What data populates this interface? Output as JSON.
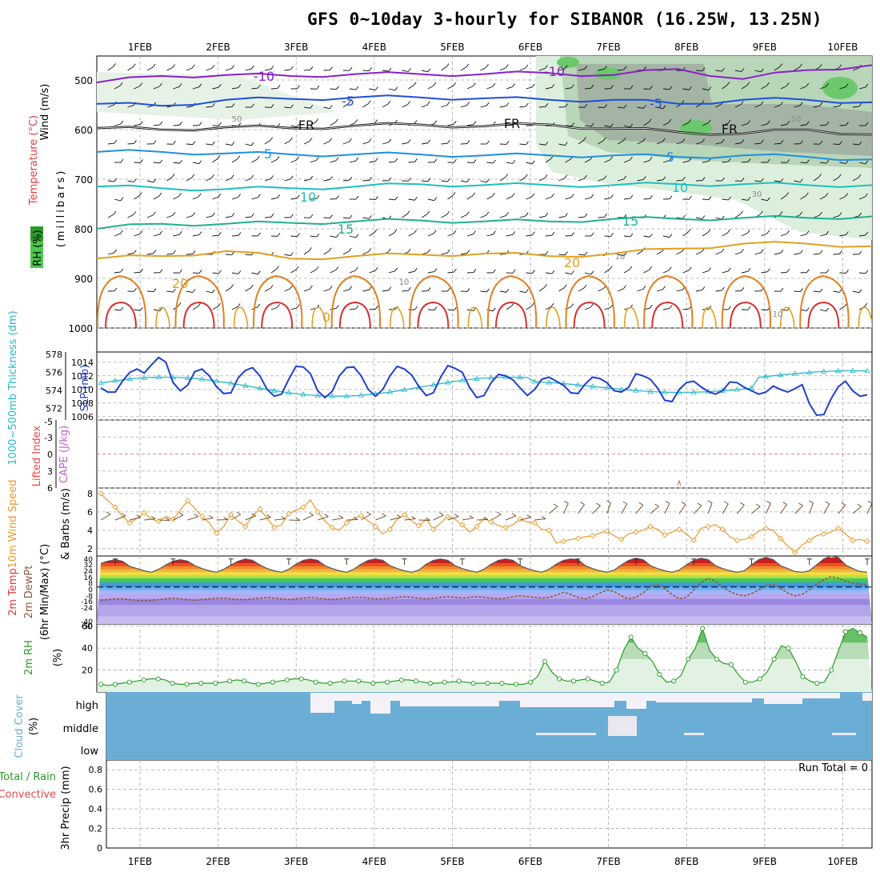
{
  "title": "GFS 0~10day 3-hourly for SIBANOR (16.25W, 13.25N)",
  "colors": {
    "grid": "#aaaaaa",
    "slp": "#1f3fd0",
    "thickness": "#2ab8c8",
    "wind10m": "#e89a2e",
    "rh2m": "#2a9a2a",
    "cloud": "#6aaed6",
    "lifted": "#e24c4c",
    "cape": "#c060d0"
  },
  "chart_data": [
    {
      "panel": "upper-air",
      "type": "line",
      "x_ticks": [
        "1FEB",
        "2FEB",
        "3FEB",
        "4FEB",
        "5FEB",
        "6FEB",
        "7FEB",
        "8FEB",
        "9FEB",
        "10FEB"
      ],
      "ylabel_left": "Wind (m/s)",
      "ylabel_temp": "Temperature (°C)",
      "ylabel_rh": "RH (%)",
      "ylabel_units": "(millibars)",
      "y_ticks": [
        "500",
        "600",
        "700",
        "800",
        "900",
        "1000"
      ],
      "contour_labels": [
        "-10",
        "-10",
        "-5",
        "-5",
        "FR",
        "FR",
        "FR",
        "5",
        "5",
        "10",
        "10",
        "15",
        "15",
        "20",
        "20",
        "50",
        "50",
        "30",
        "10",
        "10",
        "10",
        "0"
      ],
      "isotherms": [
        {
          "label": "-10",
          "color": "#8a1fc8",
          "p": [
            505,
            492,
            490,
            492,
            488,
            488,
            488,
            486,
            490,
            478,
            498,
            480,
            470
          ]
        },
        {
          "label": "-5",
          "color": "#1f4fd8",
          "p": [
            548,
            552,
            540,
            538,
            535,
            535,
            537,
            540,
            540,
            548,
            540,
            540,
            545
          ]
        },
        {
          "label": "FR",
          "color": "#111111",
          "p": [
            597,
            600,
            595,
            597,
            592,
            590,
            593,
            590,
            598,
            605,
            608,
            600,
            610
          ]
        },
        {
          "label": "5",
          "color": "#1f8fe0",
          "p": [
            645,
            645,
            648,
            650,
            650,
            650,
            652,
            652,
            652,
            655,
            652,
            655,
            660
          ]
        },
        {
          "label": "10",
          "color": "#1fbfc0",
          "p": [
            715,
            718,
            720,
            718,
            715,
            710,
            712,
            712,
            712,
            710,
            710,
            712,
            712
          ]
        },
        {
          "label": "15",
          "color": "#1fb090",
          "p": [
            800,
            790,
            790,
            788,
            785,
            783,
            785,
            785,
            780,
            780,
            778,
            778,
            775
          ]
        },
        {
          "label": "20",
          "color": "#e0a020",
          "p": [
            860,
            855,
            845,
            860,
            855,
            852,
            850,
            855,
            850,
            840,
            830,
            830,
            835
          ]
        }
      ]
    },
    {
      "panel": "slp-thickness",
      "type": "line",
      "ylabel_left": "1000~500mb Thickness (dm)",
      "ylabel_right": "SLP (mb)",
      "left_ticks": [
        "578",
        "576",
        "574",
        "572"
      ],
      "right_ticks": [
        "1014",
        "1012",
        "1010",
        "1008",
        "1006"
      ],
      "slp_ylim": [
        1005.5,
        1015.5
      ],
      "thick_ylim": [
        570,
        578
      ],
      "slp": [
        1010.2,
        1009.6,
        1009.6,
        1011.2,
        1012.5,
        1013.0,
        1012.4,
        1013.6,
        1014.7,
        1014.0,
        1011.0,
        1009.8,
        1010.6,
        1012.6,
        1013.0,
        1012.0,
        1010.4,
        1009.4,
        1009.5,
        1011.7,
        1012.8,
        1013.2,
        1012.0,
        1010.0,
        1009.0,
        1009.3,
        1011.5,
        1013.4,
        1013.3,
        1012.3,
        1009.8,
        1008.8,
        1009.7,
        1012.0,
        1013.2,
        1013.3,
        1012.0,
        1010.0,
        1009.0,
        1010.0,
        1012.0,
        1013.4,
        1013.0,
        1012.1,
        1010.4,
        1009.1,
        1009.5,
        1011.8,
        1013.5,
        1013.1,
        1012.5,
        1010.3,
        1008.8,
        1009.1,
        1011.0,
        1012.2,
        1012.0,
        1011.4,
        1010.2,
        1009.1,
        1010.0,
        1011.5,
        1011.8,
        1011.2,
        1010.6,
        1009.5,
        1009.4,
        1010.8,
        1011.8,
        1011.6,
        1011.0,
        1009.8,
        1009.6,
        1010.3,
        1012.3,
        1012.0,
        1011.5,
        1010.2,
        1008.4,
        1008.2,
        1010.0,
        1011.0,
        1011.2,
        1010.4,
        1009.7,
        1009.3,
        1009.8,
        1011.1,
        1011.0,
        1010.3,
        1009.8,
        1009.3,
        1009.6,
        1010.5,
        1010.0,
        1009.6,
        1010.1,
        1010.7,
        1007.9,
        1006.2,
        1006.3,
        1008.6,
        1010.4,
        1011.2,
        1009.8,
        1009.0,
        1009.2
      ]
    },
    {
      "panel": "lifted-cape",
      "type": "line",
      "ylabel_left": "Lifted Index",
      "ylabel_right": "CAPE (J/kg)",
      "y_ticks": [
        "-5",
        "-3",
        "0",
        "3",
        "6"
      ],
      "ylim": [
        -6,
        6
      ],
      "zero_line": 0
    },
    {
      "panel": "wind10m",
      "type": "line",
      "ylabel_left": "10m Wind Speed",
      "ylabel_right": "& Barbs (m/s)",
      "y_ticks": [
        "8",
        "6",
        "4",
        "2"
      ],
      "ylim": [
        1.2,
        8.6
      ],
      "values": [
        8.0,
        7.2,
        6.5,
        5.5,
        4.8,
        5.3,
        5.9,
        5.2,
        5.0,
        5.5,
        5.2,
        6.2,
        7.2,
        6.4,
        5.5,
        4.8,
        3.7,
        4.4,
        5.7,
        5.0,
        4.4,
        5.6,
        6.3,
        5.3,
        4.3,
        4.6,
        5.8,
        6.2,
        6.5,
        7.3,
        6.0,
        5.0,
        4.3,
        4.0,
        4.8,
        5.3,
        5.6,
        5.0,
        4.4,
        3.6,
        4.1,
        5.2,
        5.7,
        5.0,
        4.5,
        5.2,
        4.1,
        4.8,
        5.5,
        5.2,
        4.6,
        3.8,
        4.4,
        5.3,
        4.9,
        4.5,
        4.3,
        4.6,
        5.2,
        4.9,
        4.8,
        4.1,
        4.0,
        2.6,
        2.8,
        3.0,
        3.1,
        3.3,
        3.4,
        3.7,
        3.9,
        3.4,
        3.0,
        3.6,
        3.8,
        4.0,
        4.4,
        4.1,
        3.5,
        3.8,
        4.1,
        3.6,
        2.9,
        4.2,
        4.4,
        4.6,
        4.1,
        3.3,
        2.9,
        3.0,
        3.3,
        3.9,
        4.2,
        4.0,
        3.1,
        2.3,
        1.6,
        2.4,
        2.9,
        3.4,
        3.6,
        3.8,
        4.2,
        3.6,
        2.9,
        3.0,
        2.8
      ]
    },
    {
      "panel": "temp2m",
      "type": "area",
      "ylabel_left": "2m Temp",
      "ylabel_mid": "2m DewPt",
      "ylabel_right": "(6hr Min/Max) (°C)",
      "y_ticks": [
        "40",
        "32",
        "24",
        "16",
        "8",
        "0",
        "-8",
        "-16",
        "-24",
        "-40",
        "-50"
      ],
      "ylim": [
        -50,
        42
      ],
      "temp": [
        32,
        35,
        37,
        35,
        28,
        25,
        22,
        20,
        24,
        30,
        35,
        37,
        35,
        29,
        25,
        22,
        20,
        24,
        30,
        35,
        38,
        36,
        30,
        25,
        22,
        20,
        24,
        31,
        36,
        38,
        36,
        29,
        25,
        22,
        20,
        24,
        31,
        36,
        38,
        36,
        29,
        25,
        22,
        20,
        23,
        31,
        36,
        38,
        36,
        29,
        25,
        22,
        20,
        24,
        31,
        36,
        38,
        36,
        29,
        25,
        22,
        20,
        24,
        31,
        36,
        38,
        37,
        29,
        25,
        22,
        20,
        23,
        30,
        36,
        39,
        37,
        29,
        25,
        22,
        20,
        23,
        30,
        36,
        39,
        37,
        29,
        25,
        22,
        20,
        22,
        30,
        37,
        40,
        37,
        29,
        25,
        21,
        20,
        22,
        30,
        38,
        42,
        40,
        30,
        25,
        21,
        20
      ],
      "dewpt": [
        -18,
        -17,
        -16,
        -16,
        -17,
        -18,
        -19,
        -18,
        -17,
        -16,
        -15,
        -16,
        -17,
        -18,
        -17,
        -16,
        -15,
        -15,
        -16,
        -17,
        -17,
        -16,
        -15,
        -14,
        -15,
        -16,
        -17,
        -16,
        -15,
        -14,
        -15,
        -16,
        -17,
        -16,
        -15,
        -14,
        -14,
        -15,
        -16,
        -16,
        -15,
        -14,
        -13,
        -14,
        -15,
        -16,
        -15,
        -14,
        -13,
        -14,
        -15,
        -14,
        -13,
        -14,
        -15,
        -16,
        -15,
        -13,
        -12,
        -13,
        -14,
        -15,
        -14,
        -11,
        -7,
        -10,
        -14,
        -16,
        -13,
        -8,
        -4,
        -6,
        -12,
        -16,
        -14,
        -8,
        0,
        4,
        -2,
        -10,
        -16,
        -14,
        -4,
        6,
        12,
        8,
        0,
        -6,
        -10,
        -12,
        -9,
        -4,
        2,
        4,
        -2,
        -8,
        -12,
        -10,
        -4,
        4,
        10,
        14,
        12,
        8,
        5,
        4,
        3
      ]
    },
    {
      "panel": "rh2m",
      "type": "area",
      "ylabel_left": "2m RH",
      "ylabel_right": "(%)",
      "y_ticks": [
        "60",
        "40",
        "20"
      ],
      "ylim": [
        0,
        62
      ],
      "values": [
        7,
        6,
        7,
        8,
        9,
        10,
        11,
        12,
        12,
        11,
        8,
        7,
        7,
        8,
        8,
        8,
        8,
        9,
        10,
        11,
        10,
        8,
        7,
        8,
        9,
        10,
        11,
        12,
        12,
        11,
        9,
        8,
        8,
        9,
        10,
        10,
        10,
        9,
        8,
        9,
        9,
        10,
        11,
        11,
        10,
        9,
        8,
        8,
        9,
        9,
        10,
        9,
        8,
        8,
        8,
        8,
        8,
        7,
        7,
        7,
        9,
        14,
        28,
        18,
        12,
        10,
        10,
        11,
        12,
        10,
        8,
        9,
        20,
        38,
        50,
        40,
        35,
        28,
        16,
        9,
        10,
        15,
        30,
        40,
        58,
        38,
        30,
        26,
        25,
        16,
        9,
        9,
        12,
        18,
        30,
        42,
        40,
        28,
        14,
        10,
        8,
        9,
        20,
        38,
        55,
        58,
        54,
        50
      ]
    },
    {
      "panel": "cloud-cover",
      "type": "area",
      "ylabel_left": "Cloud Cover",
      "ylabel_right": "(%)",
      "levels": [
        "high",
        "middle",
        "low"
      ]
    },
    {
      "panel": "precip3hr",
      "type": "bar",
      "ylabel_left": "Total / Rain",
      "ylabel_mid": "Convective",
      "ylabel_right": "3hr Precip (mm)",
      "run_total": "Run Total = 0",
      "y_ticks": [
        "0.8",
        "0.6",
        "0.4",
        "0.2",
        "0"
      ],
      "ylim": [
        0,
        0.9
      ],
      "x_ticks": [
        "1FEB",
        "2FEB",
        "3FEB",
        "4FEB",
        "5FEB",
        "6FEB",
        "7FEB",
        "8FEB",
        "9FEB",
        "10FEB"
      ]
    }
  ]
}
